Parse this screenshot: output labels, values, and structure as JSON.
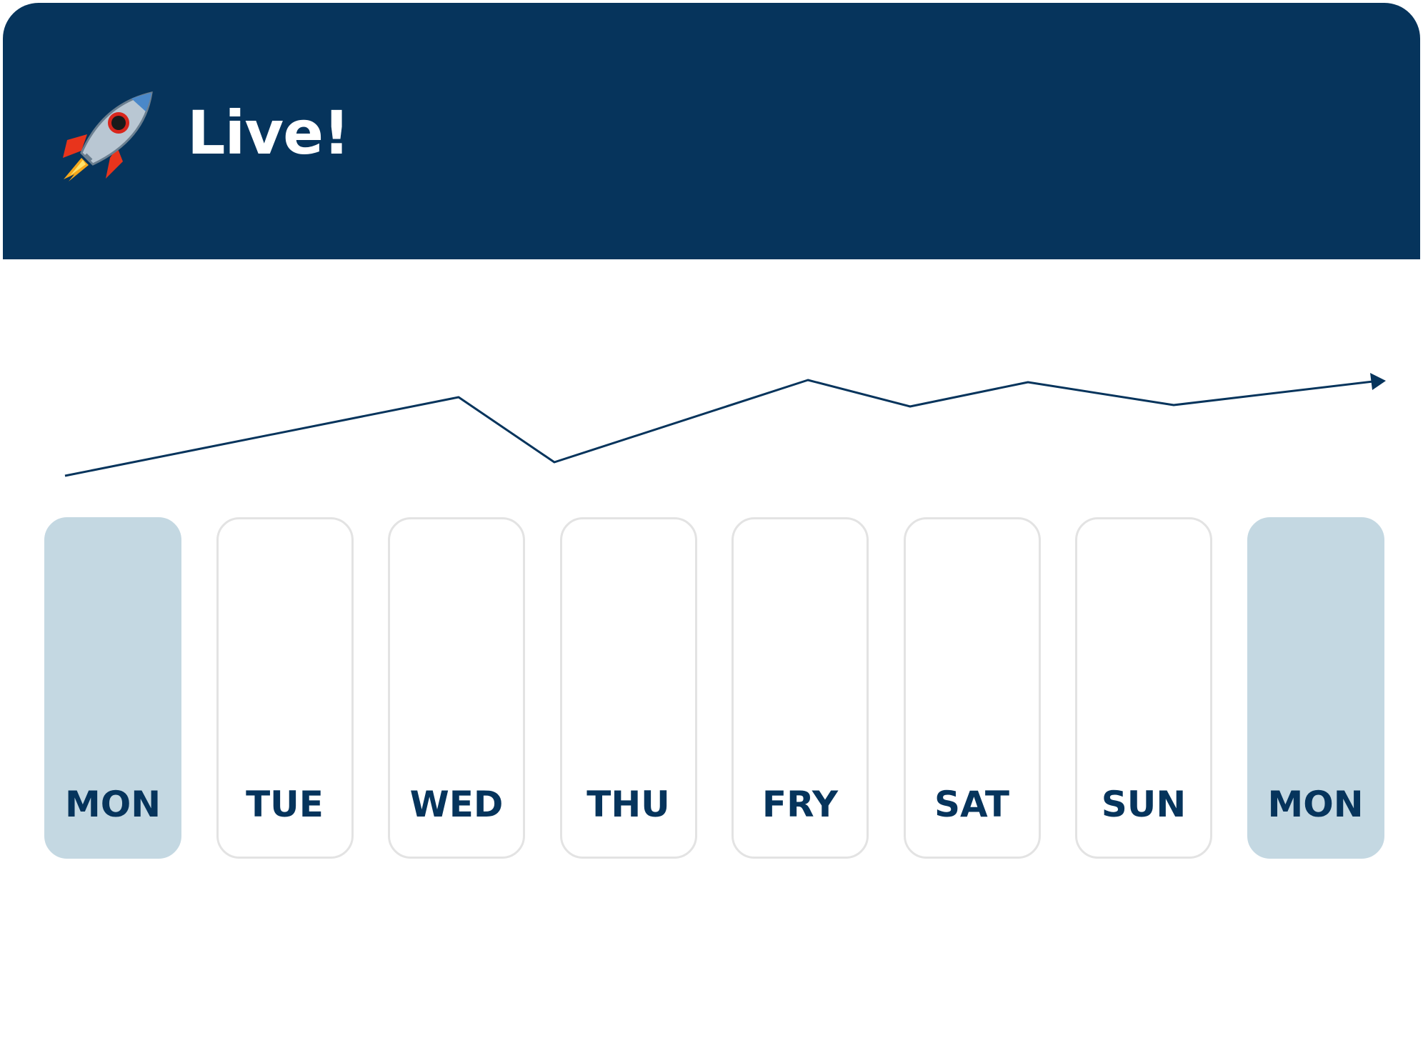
{
  "header": {
    "title": "Live!"
  },
  "days": [
    {
      "label": "MON",
      "highlighted": true
    },
    {
      "label": "TUE",
      "highlighted": false
    },
    {
      "label": "WED",
      "highlighted": false
    },
    {
      "label": "THU",
      "highlighted": false
    },
    {
      "label": "FRY",
      "highlighted": false
    },
    {
      "label": "SAT",
      "highlighted": false
    },
    {
      "label": "SUN",
      "highlighted": false
    },
    {
      "label": "MON",
      "highlighted": true
    }
  ]
}
